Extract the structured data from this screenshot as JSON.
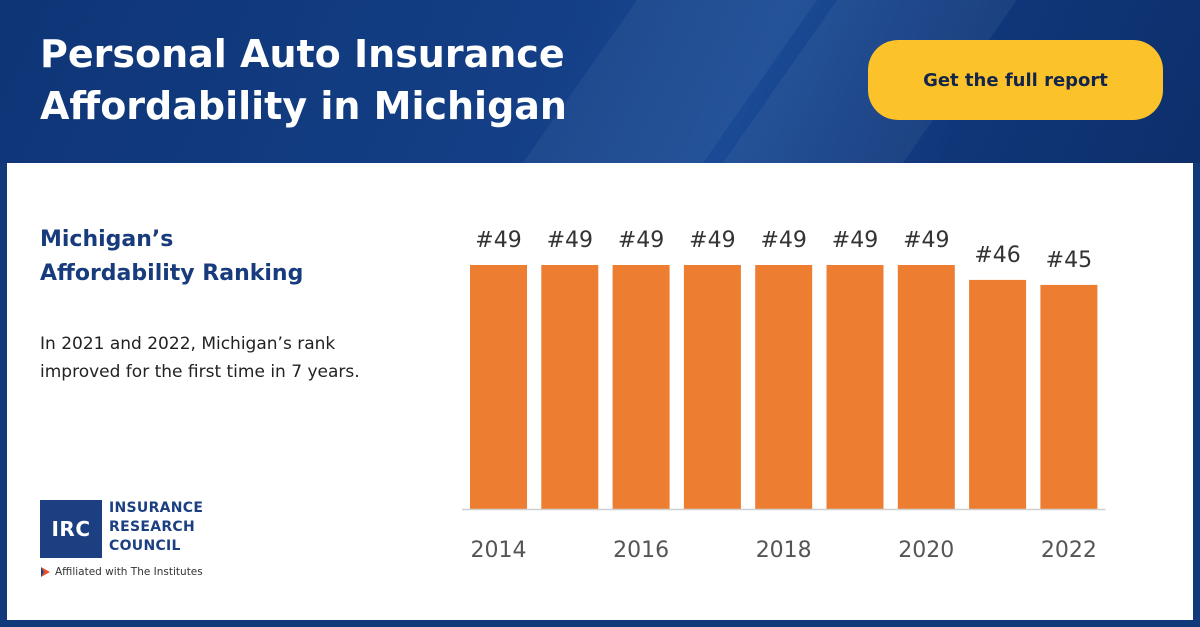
{
  "header": {
    "title_lines": [
      "Personal Auto Insurance",
      "Affordability in Michigan"
    ],
    "cta_label": "Get the full report"
  },
  "panel": {
    "subtitle_lines": [
      "Michigan’s",
      "Affordability Ranking"
    ],
    "description_lines": [
      "In 2021 and 2022, Michigan’s rank",
      "improved for the first time in 7 years."
    ]
  },
  "logo": {
    "mark": "IRC",
    "name_lines": [
      "INSURANCE",
      "RESEARCH",
      "COUNCIL"
    ],
    "affiliation": "Affiliated with The Institutes",
    "icon": "institutes-arrow-icon"
  },
  "colors": {
    "header_bg": "#133c80",
    "cta_bg": "#fcc22a",
    "bar": "#ed7d31",
    "heading": "#173b7c"
  },
  "chart_data": {
    "type": "bar",
    "categories": [
      "2014",
      "2015",
      "2016",
      "2017",
      "2018",
      "2019",
      "2020",
      "2021",
      "2022"
    ],
    "x_tick_labels": [
      "2014",
      "",
      "2016",
      "",
      "2018",
      "",
      "2020",
      "",
      "2022"
    ],
    "values": [
      49,
      49,
      49,
      49,
      49,
      49,
      49,
      46,
      45
    ],
    "data_labels": [
      "#49",
      "#49",
      "#49",
      "#49",
      "#49",
      "#49",
      "#49",
      "#46",
      "#45"
    ],
    "ylim": [
      0,
      49
    ],
    "y_axis_visible": false,
    "grid": false,
    "legend": "none"
  }
}
